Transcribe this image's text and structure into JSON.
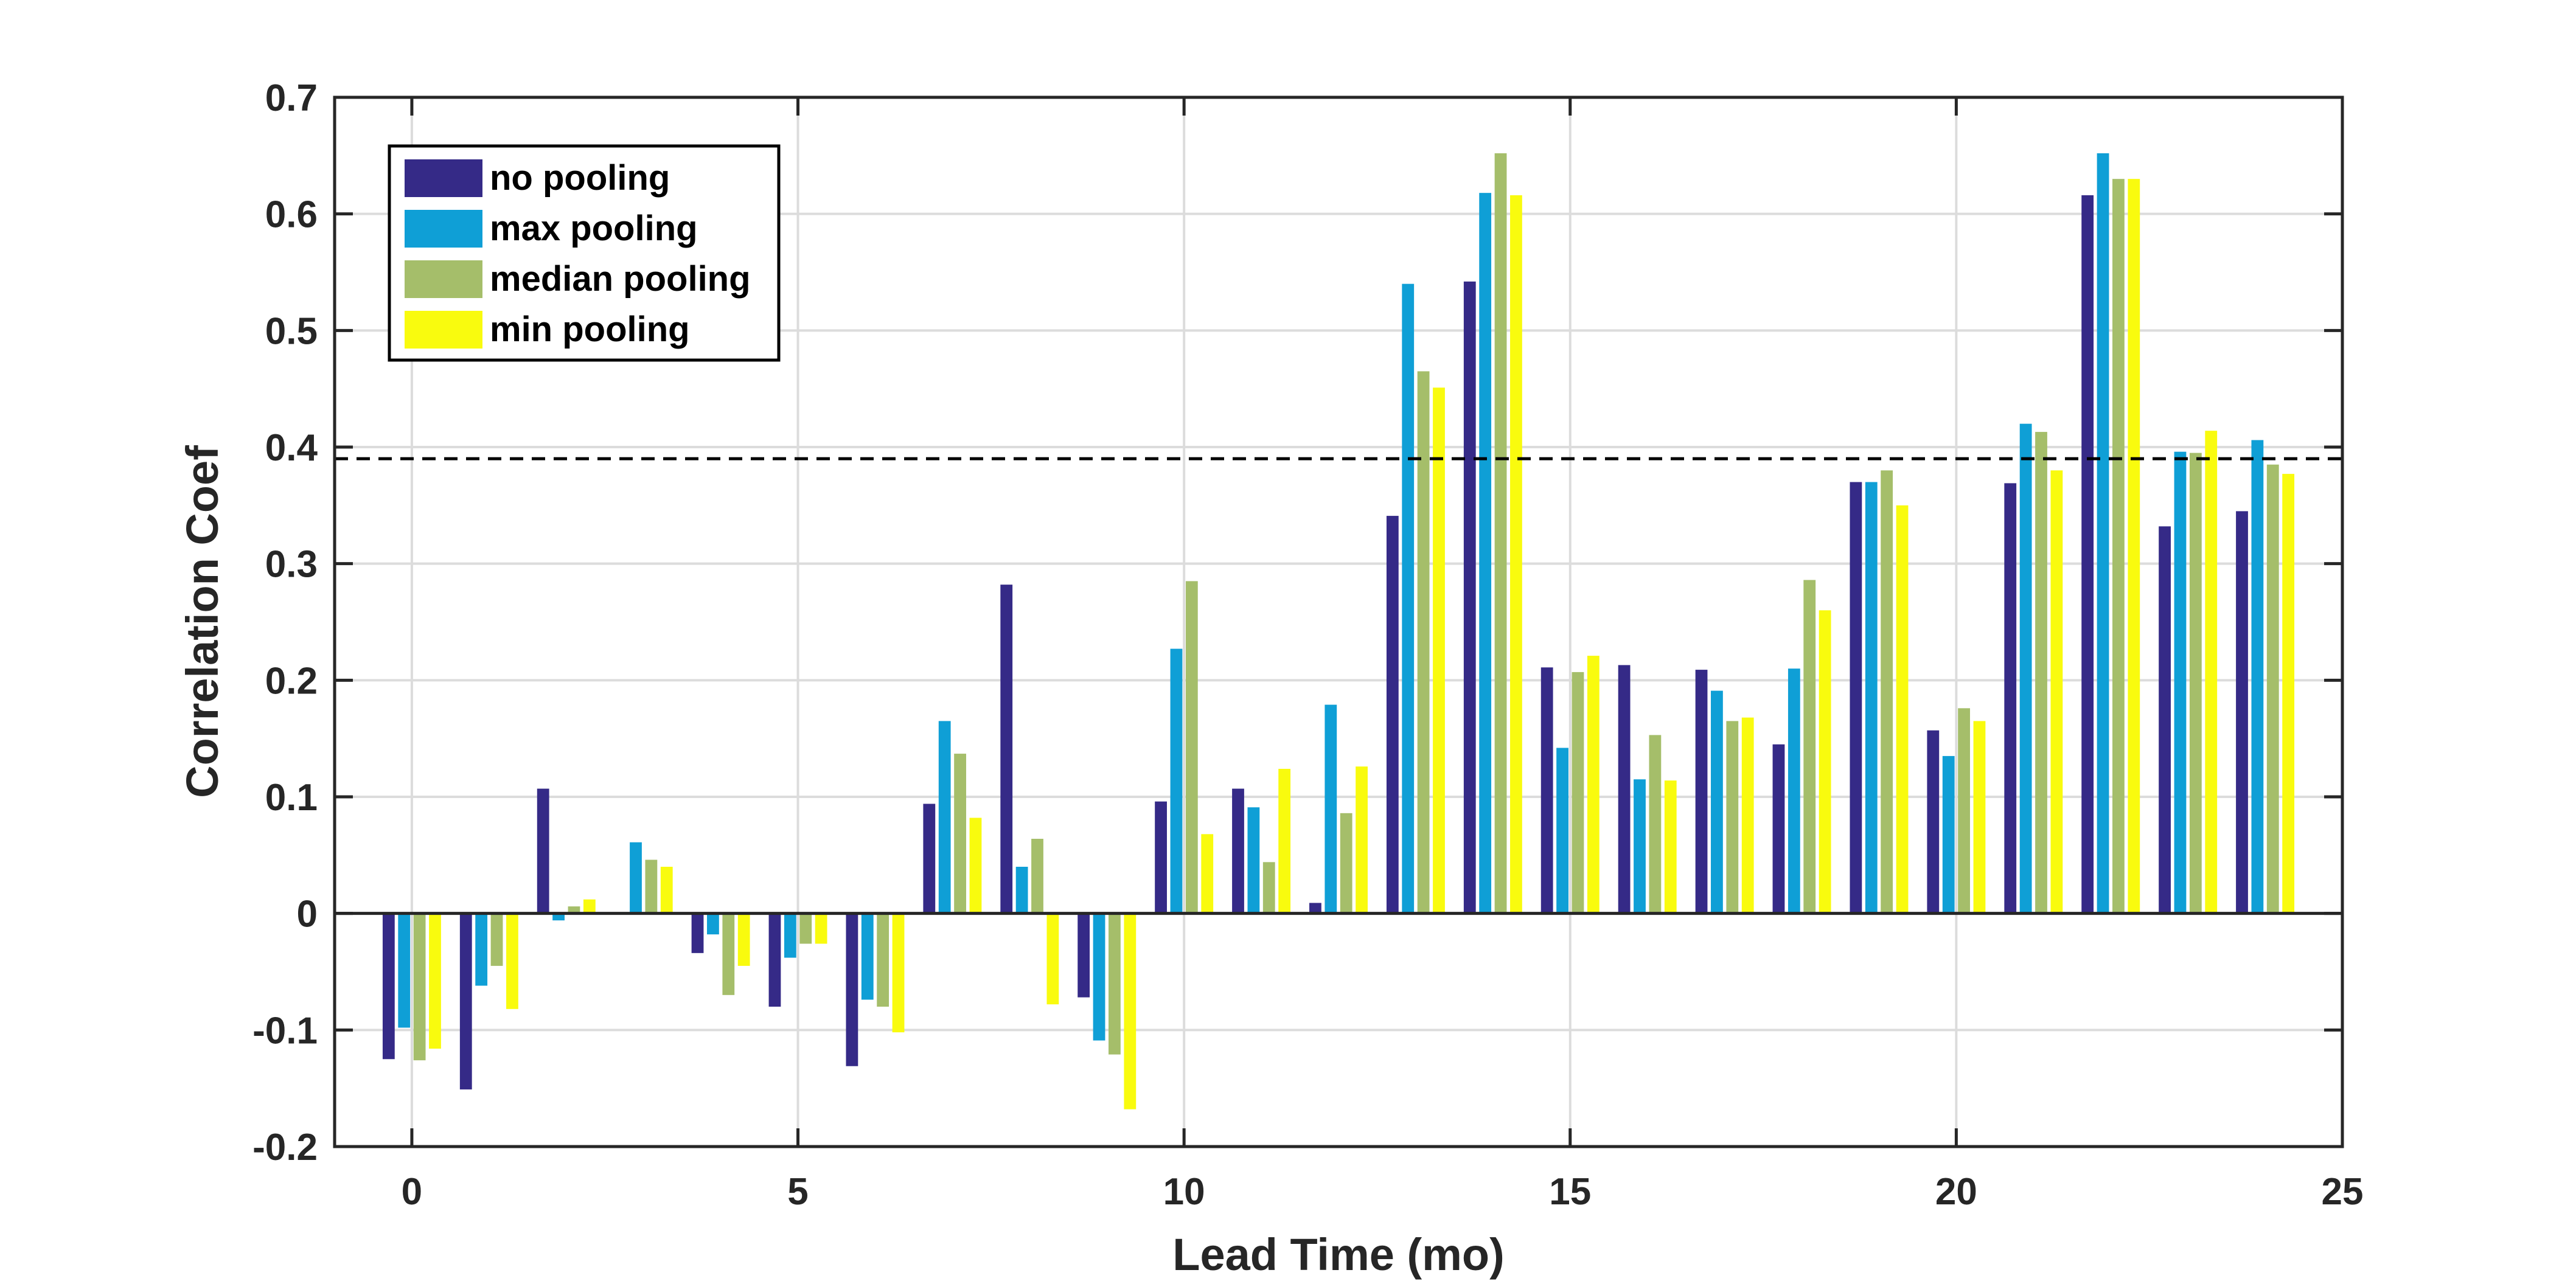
{
  "chart_data": {
    "type": "bar",
    "xlabel": "Lead Time (mo)",
    "ylabel": "Correlation Coef",
    "xlim": [
      -1,
      25
    ],
    "ylim": [
      -0.2,
      0.7
    ],
    "xticks": [
      "0",
      "5",
      "10",
      "15",
      "20",
      "25"
    ],
    "yticks": [
      "-0.2",
      "-0.1",
      "0",
      "0.1",
      "0.2",
      "0.3",
      "0.4",
      "0.5",
      "0.6",
      "0.7"
    ],
    "grid": true,
    "legend_position": "top-left",
    "reference_line": 0.39,
    "x": [
      0,
      1,
      2,
      3,
      4,
      5,
      6,
      7,
      8,
      9,
      10,
      11,
      12,
      13,
      14,
      15,
      16,
      17,
      18,
      19,
      20,
      21,
      22,
      23,
      24
    ],
    "series": [
      {
        "name": "no pooling",
        "color": "#352a87",
        "values": [
          -0.125,
          -0.151,
          0.107,
          0.0,
          -0.034,
          -0.08,
          -0.131,
          0.094,
          0.282,
          -0.072,
          0.096,
          0.107,
          0.009,
          0.341,
          0.542,
          0.211,
          0.213,
          0.209,
          0.145,
          0.37,
          0.157,
          0.369,
          0.616,
          0.332,
          0.345
        ]
      },
      {
        "name": "max pooling",
        "color": "#0f9fd6",
        "values": [
          -0.098,
          -0.062,
          -0.006,
          0.061,
          -0.018,
          -0.038,
          -0.074,
          0.165,
          0.04,
          -0.109,
          0.227,
          0.091,
          0.179,
          0.54,
          0.618,
          0.142,
          0.115,
          0.191,
          0.21,
          0.37,
          0.135,
          0.42,
          0.652,
          0.396,
          0.406
        ]
      },
      {
        "name": "median pooling",
        "color": "#a5be6a",
        "values": [
          -0.126,
          -0.045,
          0.006,
          0.046,
          -0.07,
          -0.026,
          -0.08,
          0.137,
          0.064,
          -0.121,
          0.285,
          0.044,
          0.086,
          0.465,
          0.652,
          0.207,
          0.153,
          0.165,
          0.286,
          0.38,
          0.176,
          0.413,
          0.63,
          0.395,
          0.385
        ]
      },
      {
        "name": "min pooling",
        "color": "#f9fb0e",
        "values": [
          -0.116,
          -0.082,
          0.012,
          0.04,
          -0.045,
          -0.026,
          -0.102,
          0.082,
          -0.078,
          -0.168,
          0.068,
          0.124,
          0.126,
          0.451,
          0.616,
          0.221,
          0.114,
          0.168,
          0.26,
          0.35,
          0.165,
          0.38,
          0.63,
          0.414,
          0.377
        ]
      }
    ]
  }
}
